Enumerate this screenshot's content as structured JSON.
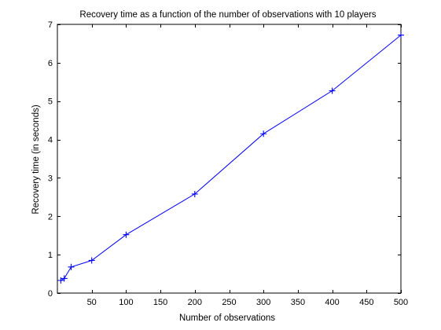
{
  "chart_data": {
    "type": "line",
    "title": "Recovery time as a function of the number of observations with 10 players",
    "xlabel": "Number of observations",
    "ylabel": "Recovery time (in seconds)",
    "xlim": [
      0,
      500
    ],
    "ylim": [
      0,
      7
    ],
    "xticks": [
      50,
      100,
      150,
      200,
      250,
      300,
      350,
      400,
      450,
      500
    ],
    "yticks": [
      0,
      1,
      2,
      3,
      4,
      5,
      6,
      7
    ],
    "grid": false,
    "marker": "+",
    "series": [
      {
        "color": "#0000ff",
        "x": [
          5,
          10,
          20,
          50,
          100,
          200,
          300,
          400,
          500
        ],
        "y": [
          0.33,
          0.38,
          0.68,
          0.85,
          1.52,
          2.58,
          4.15,
          5.27,
          6.72
        ]
      }
    ]
  }
}
